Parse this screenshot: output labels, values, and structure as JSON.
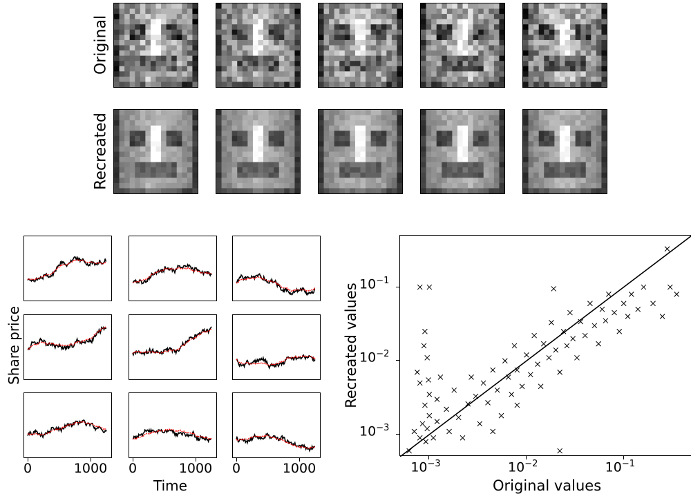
{
  "faces": {
    "row_labels": {
      "original": "Original",
      "recreated": "Recreated"
    },
    "count": 5
  },
  "share_panels": {
    "ylabel": "Share price",
    "xlabel": "Time",
    "xticks": [
      "0",
      "1000"
    ],
    "colors": {
      "original": "#000000",
      "recreated": "#ff0000"
    }
  },
  "scatter": {
    "xlabel": "Original values",
    "ylabel": "Recreated values",
    "x_ticks": [
      {
        "base": "10",
        "exp": "−3"
      },
      {
        "base": "10",
        "exp": "−2"
      },
      {
        "base": "10",
        "exp": "−1"
      }
    ],
    "y_ticks": [
      {
        "base": "10",
        "exp": "−1"
      },
      {
        "base": "10",
        "exp": "−2"
      },
      {
        "base": "10",
        "exp": "−3"
      }
    ]
  },
  "chart_data": [
    {
      "type": "line",
      "ylabel": "Share price",
      "xlabel": "Time",
      "xlim": [
        0,
        1300
      ],
      "series_count": 9,
      "series": [
        {
          "color": "#000000",
          "style": "solid"
        },
        {
          "color": "#ff0000",
          "style": "dotted"
        }
      ]
    },
    {
      "type": "scatter",
      "xlabel": "Original values",
      "ylabel": "Recreated values",
      "xscale": "log",
      "yscale": "log",
      "xlim": [
        0.0005,
        0.5
      ],
      "ylim": [
        0.0005,
        0.5
      ],
      "marker": "x",
      "reference_line": "y = x",
      "points": [
        [
          0.00062,
          0.0006
        ],
        [
          0.0007,
          0.0011
        ],
        [
          0.0008,
          0.0009
        ],
        [
          0.00085,
          0.0014
        ],
        [
          0.0009,
          0.0025
        ],
        [
          0.00092,
          0.0008
        ],
        [
          0.00095,
          0.0012
        ],
        [
          0.001,
          0.0018
        ],
        [
          0.001,
          0.0035
        ],
        [
          0.00098,
          0.0055
        ],
        [
          0.00075,
          0.007
        ],
        [
          0.0008,
          0.005
        ],
        [
          0.00088,
          0.016
        ],
        [
          0.0009,
          0.025
        ],
        [
          0.00095,
          0.011
        ],
        [
          0.0011,
          0.0009
        ],
        [
          0.0012,
          0.0015
        ],
        [
          0.0012,
          0.003
        ],
        [
          0.0013,
          0.006
        ],
        [
          0.0015,
          0.0022
        ],
        [
          0.0016,
          0.0011
        ],
        [
          0.0018,
          0.004
        ],
        [
          0.002,
          0.0017
        ],
        [
          0.0022,
          0.0009
        ],
        [
          0.0025,
          0.0026
        ],
        [
          0.0027,
          0.006
        ],
        [
          0.003,
          0.0033
        ],
        [
          0.0033,
          0.0014
        ],
        [
          0.0036,
          0.005
        ],
        [
          0.004,
          0.0027
        ],
        [
          0.0045,
          0.0075
        ],
        [
          0.005,
          0.004
        ],
        [
          0.0055,
          0.0018
        ],
        [
          0.006,
          0.01
        ],
        [
          0.0065,
          0.006
        ],
        [
          0.007,
          0.0035
        ],
        [
          0.0075,
          0.016
        ],
        [
          0.008,
          0.0075
        ],
        [
          0.009,
          0.0045
        ],
        [
          0.01,
          0.012
        ],
        [
          0.011,
          0.0065
        ],
        [
          0.012,
          0.022
        ],
        [
          0.013,
          0.009
        ],
        [
          0.014,
          0.0045
        ],
        [
          0.015,
          0.017
        ],
        [
          0.017,
          0.011
        ],
        [
          0.018,
          0.033
        ],
        [
          0.02,
          0.014
        ],
        [
          0.022,
          0.007
        ],
        [
          0.024,
          0.025
        ],
        [
          0.026,
          0.016
        ],
        [
          0.028,
          0.045
        ],
        [
          0.03,
          0.02
        ],
        [
          0.033,
          0.011
        ],
        [
          0.036,
          0.034
        ],
        [
          0.04,
          0.022
        ],
        [
          0.045,
          0.06
        ],
        [
          0.05,
          0.03
        ],
        [
          0.055,
          0.017
        ],
        [
          0.06,
          0.05
        ],
        [
          0.065,
          0.035
        ],
        [
          0.07,
          0.08
        ],
        [
          0.08,
          0.045
        ],
        [
          0.09,
          0.025
        ],
        [
          0.1,
          0.06
        ],
        [
          0.11,
          0.04
        ],
        [
          0.12,
          0.08
        ],
        [
          0.14,
          0.05
        ],
        [
          0.16,
          0.1
        ],
        [
          0.2,
          0.06
        ],
        [
          0.25,
          0.04
        ],
        [
          0.3,
          0.1
        ],
        [
          0.35,
          0.08
        ],
        [
          0.28,
          0.33
        ],
        [
          0.0008,
          0.1
        ],
        [
          0.001,
          0.1
        ],
        [
          0.019,
          0.095
        ],
        [
          0.022,
          0.0006
        ],
        [
          0.008,
          0.0025
        ],
        [
          0.0045,
          0.0011
        ]
      ]
    }
  ]
}
